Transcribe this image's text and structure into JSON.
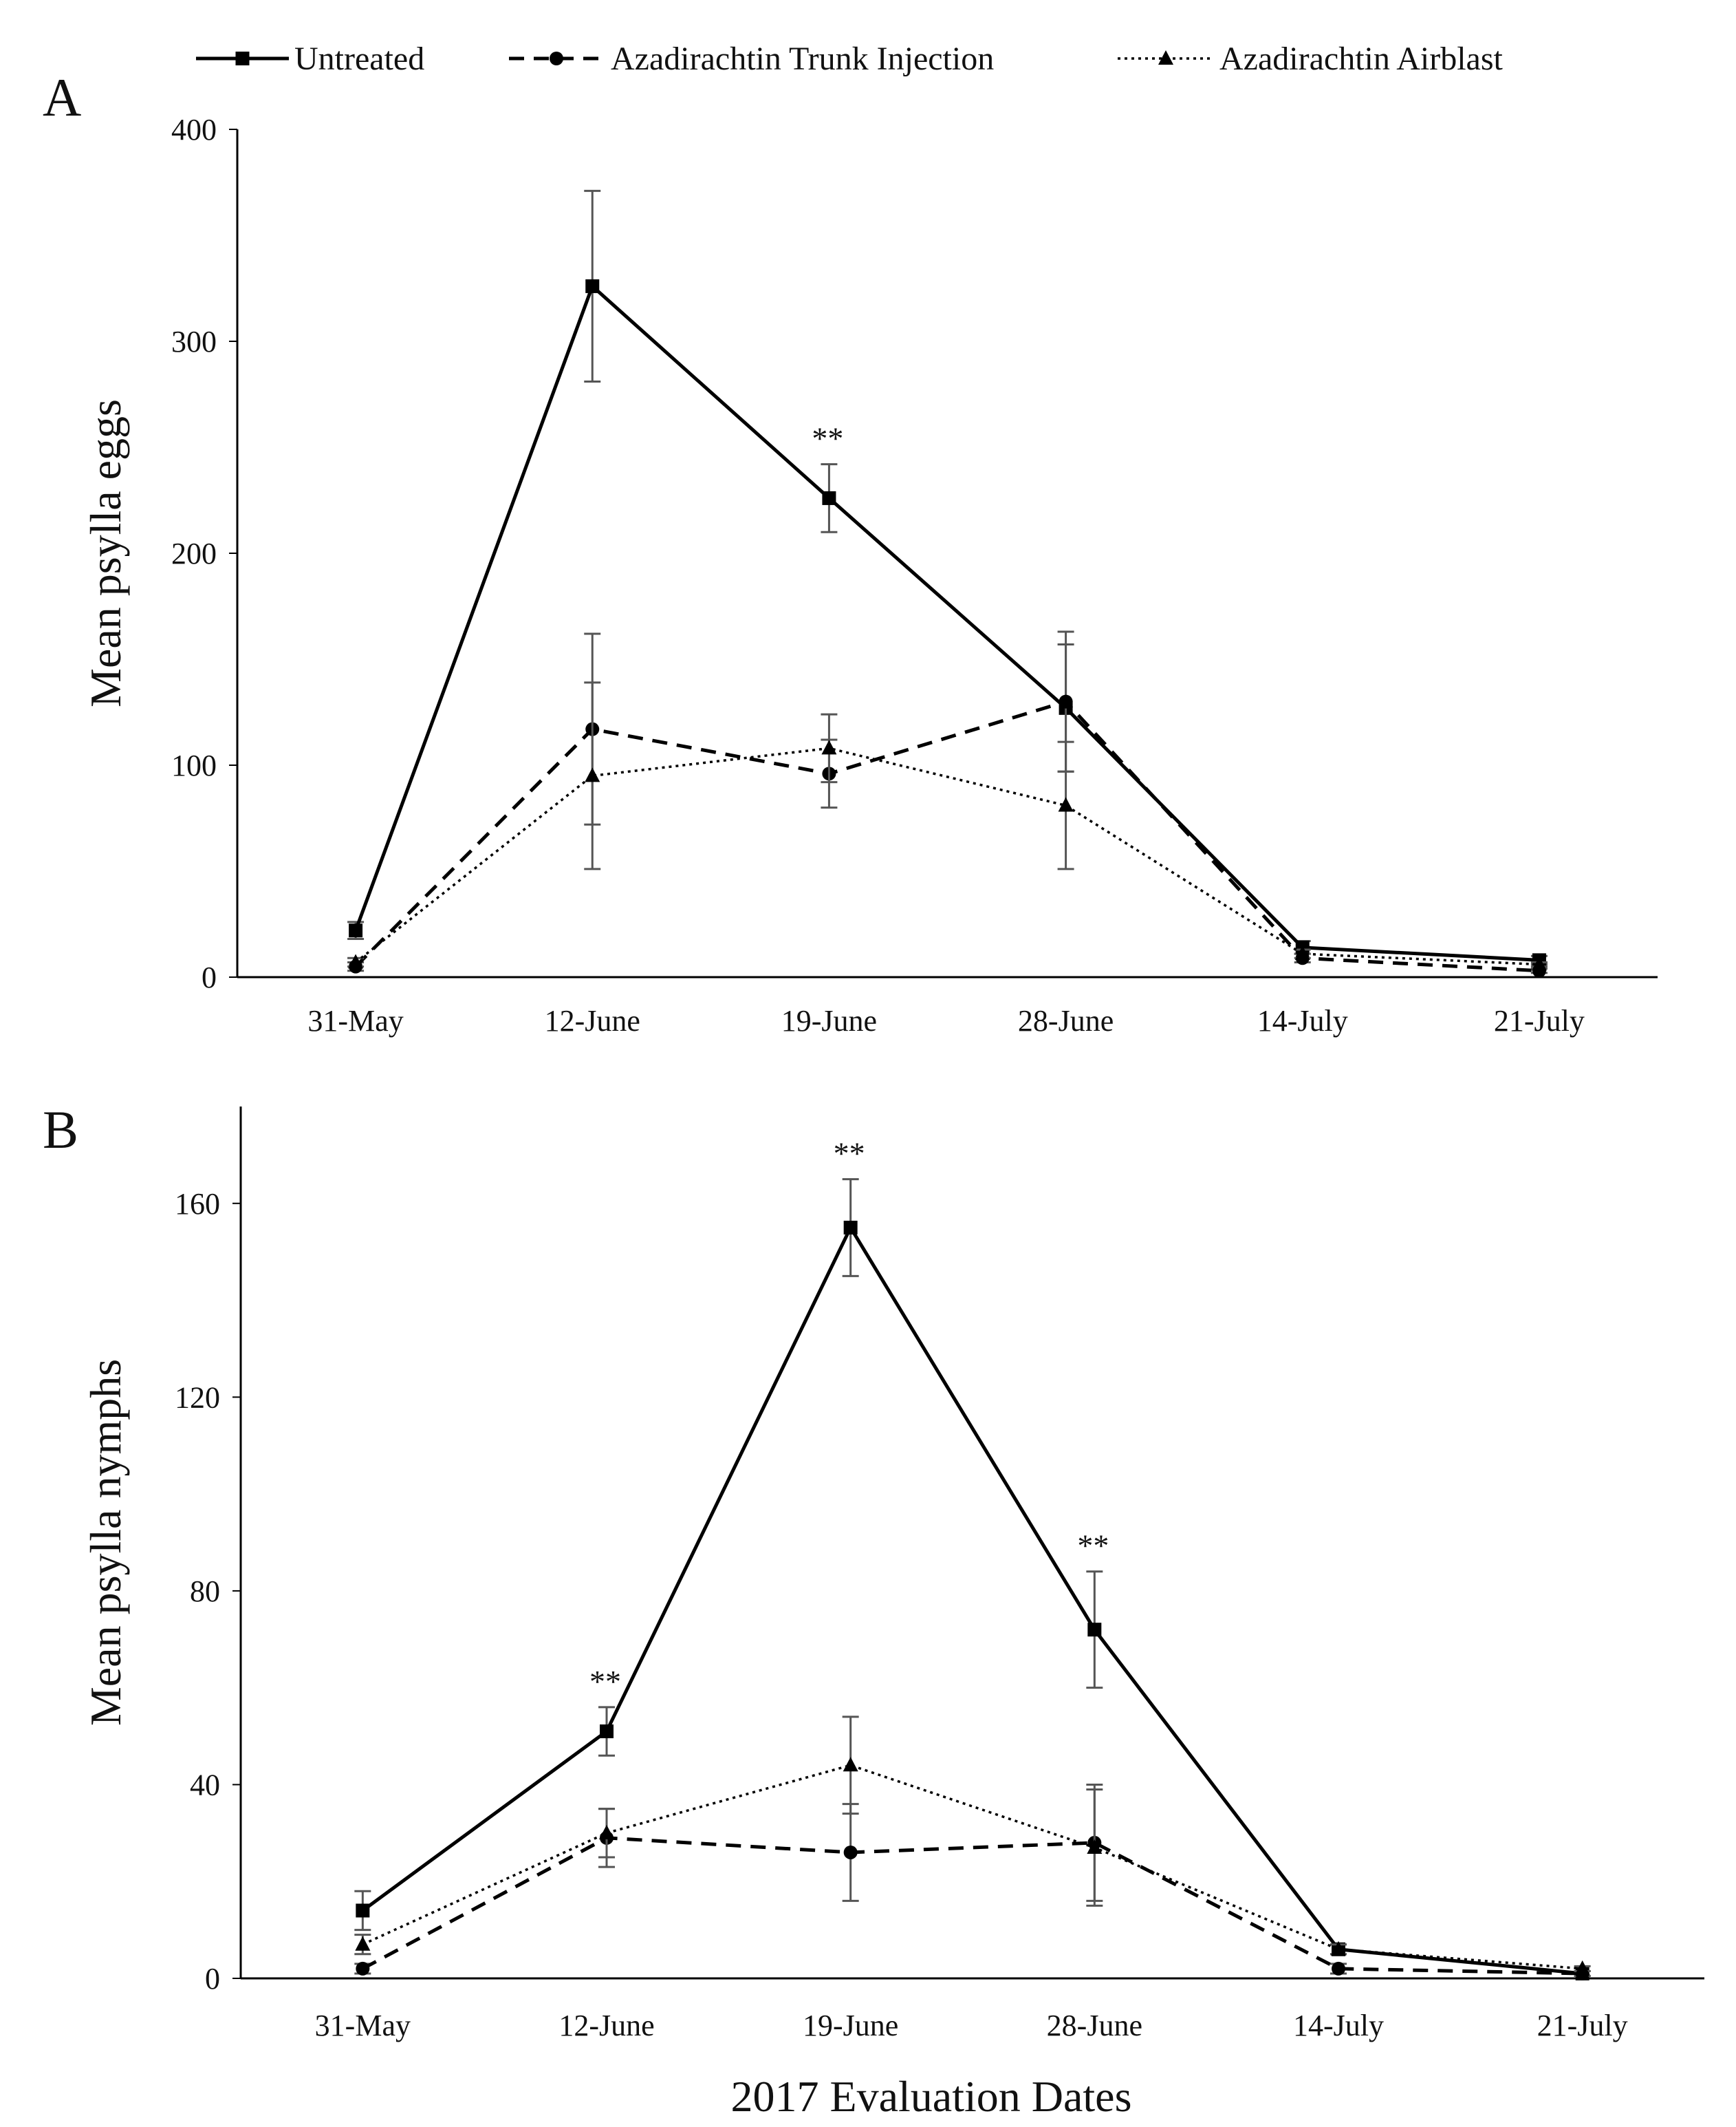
{
  "legend": {
    "items": [
      {
        "label": "Untreated",
        "style": "solid",
        "marker": "square"
      },
      {
        "label": "Azadirachtin Trunk Injection",
        "style": "dashed",
        "marker": "circle"
      },
      {
        "label": "Azadirachtin Airblast",
        "style": "dotted",
        "marker": "triangle"
      }
    ]
  },
  "colors": {
    "line": "#000000",
    "error_bar": "#555555",
    "axis": "#000000"
  },
  "chart_data": [
    {
      "type": "line",
      "panel": "A",
      "title": "",
      "xlabel": "",
      "ylabel": "Mean psylla eggs",
      "ylim": [
        0,
        400
      ],
      "yticks": [
        0,
        100,
        200,
        300,
        400
      ],
      "categories": [
        "31-May",
        "12-June",
        "19-June",
        "28-June",
        "14-July",
        "21-July"
      ],
      "series": [
        {
          "name": "Untreated",
          "values": [
            22,
            326,
            226,
            127,
            14,
            8
          ],
          "errors": [
            4,
            45,
            16,
            30,
            3,
            2
          ]
        },
        {
          "name": "Azadirachtin Trunk Injection",
          "values": [
            5,
            117,
            96,
            130,
            9,
            3
          ],
          "errors": [
            2,
            45,
            16,
            33,
            2,
            1
          ]
        },
        {
          "name": "Azadirachtin Airblast",
          "values": [
            7,
            95,
            108,
            81,
            11,
            6
          ],
          "errors": [
            2,
            44,
            16,
            30,
            2,
            1
          ]
        }
      ],
      "annotations": [
        {
          "category": "19-June",
          "text": "**"
        }
      ]
    },
    {
      "type": "line",
      "panel": "B",
      "title": "",
      "xlabel": "2017 Evaluation Dates",
      "ylabel": "Mean psylla nymphs",
      "ylim": [
        0,
        180
      ],
      "yticks": [
        0,
        40,
        80,
        120,
        160
      ],
      "categories": [
        "31-May",
        "12-June",
        "19-June",
        "28-June",
        "14-July",
        "21-July"
      ],
      "series": [
        {
          "name": "Untreated",
          "values": [
            14,
            51,
            155,
            72,
            6,
            1
          ],
          "errors": [
            4,
            5,
            10,
            12,
            1,
            0.5
          ]
        },
        {
          "name": "Azadirachtin Trunk Injection",
          "values": [
            2,
            29,
            26,
            28,
            2,
            1
          ],
          "errors": [
            1,
            6,
            10,
            12,
            1,
            0.5
          ]
        },
        {
          "name": "Azadirachtin Airblast",
          "values": [
            7,
            30,
            44,
            27,
            6,
            2
          ],
          "errors": [
            2,
            5,
            10,
            12,
            1,
            0.5
          ]
        }
      ],
      "annotations": [
        {
          "category": "12-June",
          "text": "**"
        },
        {
          "category": "19-June",
          "text": "**"
        },
        {
          "category": "28-June",
          "text": "**"
        }
      ]
    }
  ]
}
